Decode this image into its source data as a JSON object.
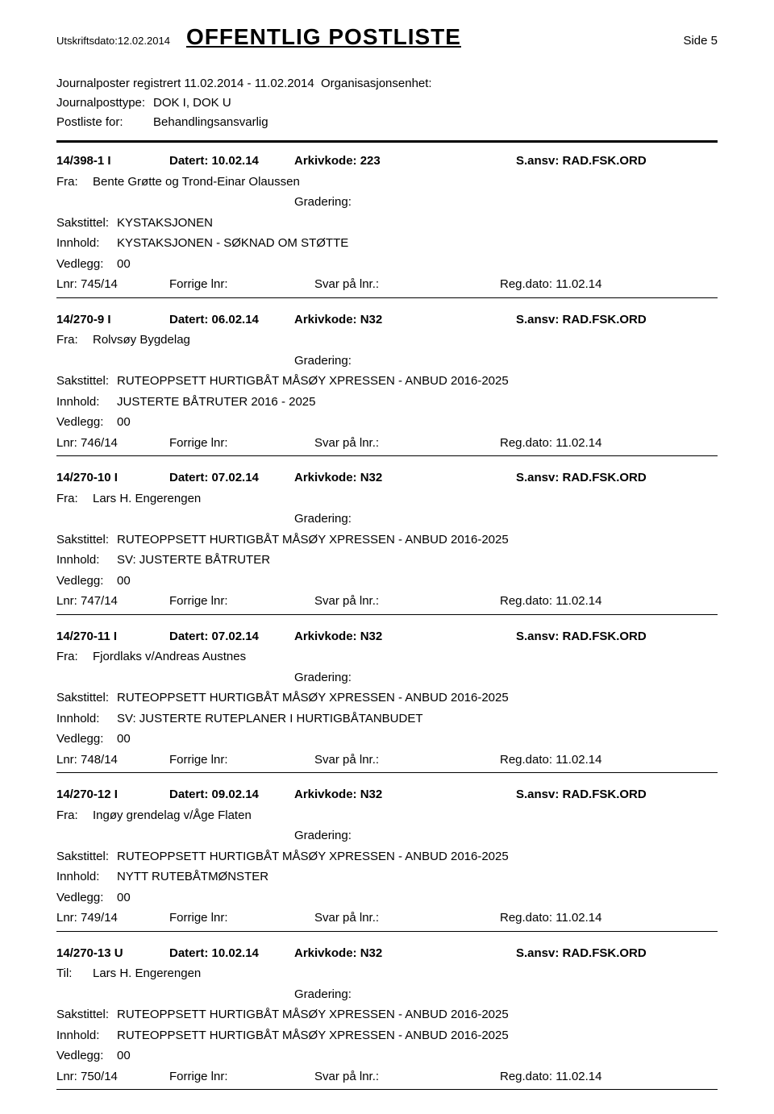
{
  "header": {
    "printDateLabel": "Utskriftsdato:",
    "printDate": "12.02.2014",
    "title": "OFFENTLIG POSTLISTE",
    "pageLabel": "Side 5"
  },
  "meta": {
    "registeredLabel": "Journalposter registrert",
    "registeredRange": "11.02.2014  -  11.02.2014",
    "orgUnitLabel": "Organisasjonsenhet:",
    "typeLabel": "Journalposttype:",
    "typeValue": "DOK I, DOK U",
    "forLabel": "Postliste for:",
    "forValue": "Behandlingsansvarlig"
  },
  "labels": {
    "datert": "Datert:",
    "arkivkode": "Arkivkode:",
    "sansv": "S.ansv:",
    "fra": "Fra:",
    "til": "Til:",
    "gradering": "Gradering:",
    "sakstittel": "Sakstittel:",
    "innhold": "Innhold:",
    "vedlegg": "Vedlegg:",
    "lnr": "Lnr:",
    "forrigeLnr": "Forrige lnr:",
    "svarPaLnr": "Svar på lnr.:",
    "regDato": "Reg.dato:"
  },
  "entries": [
    {
      "ref": "14/398-1  I",
      "datert": "10.02.14",
      "arkivkode": "223",
      "sansv": "RAD.FSK.ORD",
      "partyLabel": "Fra:",
      "party": "Bente Grøtte og Trond-Einar Olaussen",
      "gradering": "",
      "sakstittel": "KYSTAKSJONEN",
      "innhold": "KYSTAKSJONEN - SØKNAD OM STØTTE",
      "vedlegg": "00",
      "lnr": "745/14",
      "forrigeLnr": "",
      "svarPaLnr": "",
      "regDato": "11.02.14"
    },
    {
      "ref": "14/270-9  I",
      "datert": "06.02.14",
      "arkivkode": "N32",
      "sansv": "RAD.FSK.ORD",
      "partyLabel": "Fra:",
      "party": "Rolvsøy Bygdelag",
      "gradering": "",
      "sakstittel": "RUTEOPPSETT HURTIGBÅT MÅSØY XPRESSEN - ANBUD 2016-2025",
      "innhold": "JUSTERTE BÅTRUTER 2016 - 2025",
      "vedlegg": "00",
      "lnr": "746/14",
      "forrigeLnr": "",
      "svarPaLnr": "",
      "regDato": "11.02.14"
    },
    {
      "ref": "14/270-10  I",
      "datert": "07.02.14",
      "arkivkode": "N32",
      "sansv": "RAD.FSK.ORD",
      "partyLabel": "Fra:",
      "party": "Lars H. Engerengen",
      "gradering": "",
      "sakstittel": "RUTEOPPSETT HURTIGBÅT MÅSØY XPRESSEN - ANBUD 2016-2025",
      "innhold": "SV: JUSTERTE BÅTRUTER",
      "vedlegg": "00",
      "lnr": "747/14",
      "forrigeLnr": "",
      "svarPaLnr": "",
      "regDato": "11.02.14"
    },
    {
      "ref": "14/270-11  I",
      "datert": "07.02.14",
      "arkivkode": "N32",
      "sansv": "RAD.FSK.ORD",
      "partyLabel": "Fra:",
      "party": "Fjordlaks v/Andreas Austnes",
      "gradering": "",
      "sakstittel": "RUTEOPPSETT HURTIGBÅT MÅSØY XPRESSEN - ANBUD 2016-2025",
      "innhold": "SV: JUSTERTE RUTEPLANER I HURTIGBÅTANBUDET",
      "vedlegg": "00",
      "lnr": "748/14",
      "forrigeLnr": "",
      "svarPaLnr": "",
      "regDato": "11.02.14"
    },
    {
      "ref": "14/270-12  I",
      "datert": "09.02.14",
      "arkivkode": "N32",
      "sansv": "RAD.FSK.ORD",
      "partyLabel": "Fra:",
      "party": "Ingøy grendelag v/Åge Flaten",
      "gradering": "",
      "sakstittel": "RUTEOPPSETT HURTIGBÅT MÅSØY XPRESSEN - ANBUD 2016-2025",
      "innhold": "NYTT RUTEBÅTMØNSTER",
      "vedlegg": "00",
      "lnr": "749/14",
      "forrigeLnr": "",
      "svarPaLnr": "",
      "regDato": "11.02.14"
    },
    {
      "ref": "14/270-13  U",
      "datert": "10.02.14",
      "arkivkode": "N32",
      "sansv": "RAD.FSK.ORD",
      "partyLabel": "Til:",
      "party": "Lars H. Engerengen",
      "gradering": "",
      "sakstittel": "RUTEOPPSETT HURTIGBÅT MÅSØY XPRESSEN - ANBUD 2016-2025",
      "innhold": "RUTEOPPSETT HURTIGBÅT MÅSØY XPRESSEN - ANBUD 2016-2025",
      "vedlegg": "00",
      "lnr": "750/14",
      "forrigeLnr": "",
      "svarPaLnr": "",
      "regDato": "11.02.14"
    }
  ]
}
